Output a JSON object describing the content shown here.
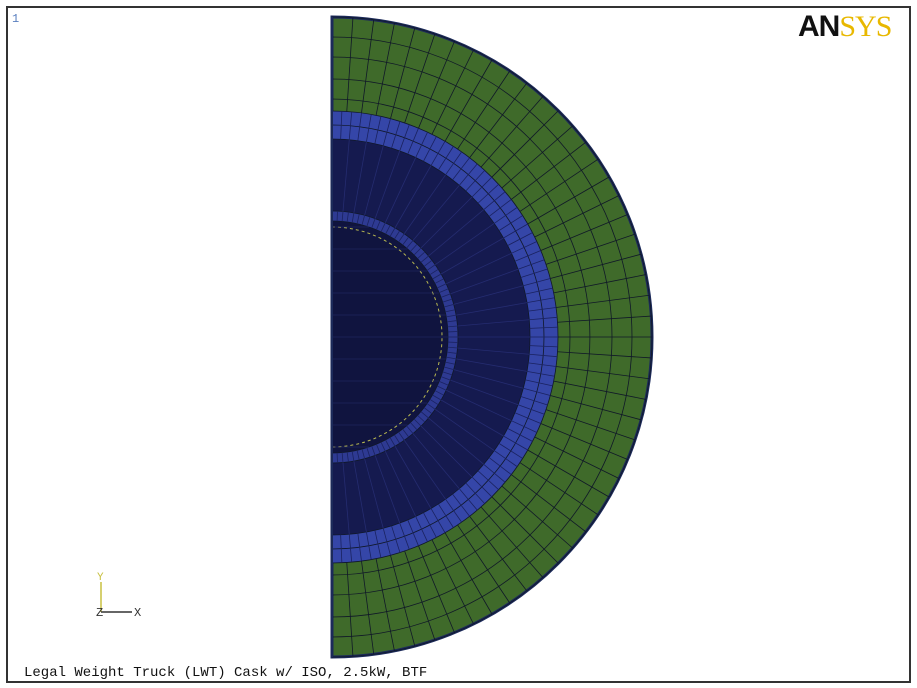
{
  "window_number": "1",
  "logo": {
    "part1": "AN",
    "part2": "SYS"
  },
  "triad": {
    "y": "Y",
    "z": "Z",
    "x": "X"
  },
  "caption": "Legal Weight Truck (LWT) Cask w/ ISO, 2.5kW, BTF"
}
